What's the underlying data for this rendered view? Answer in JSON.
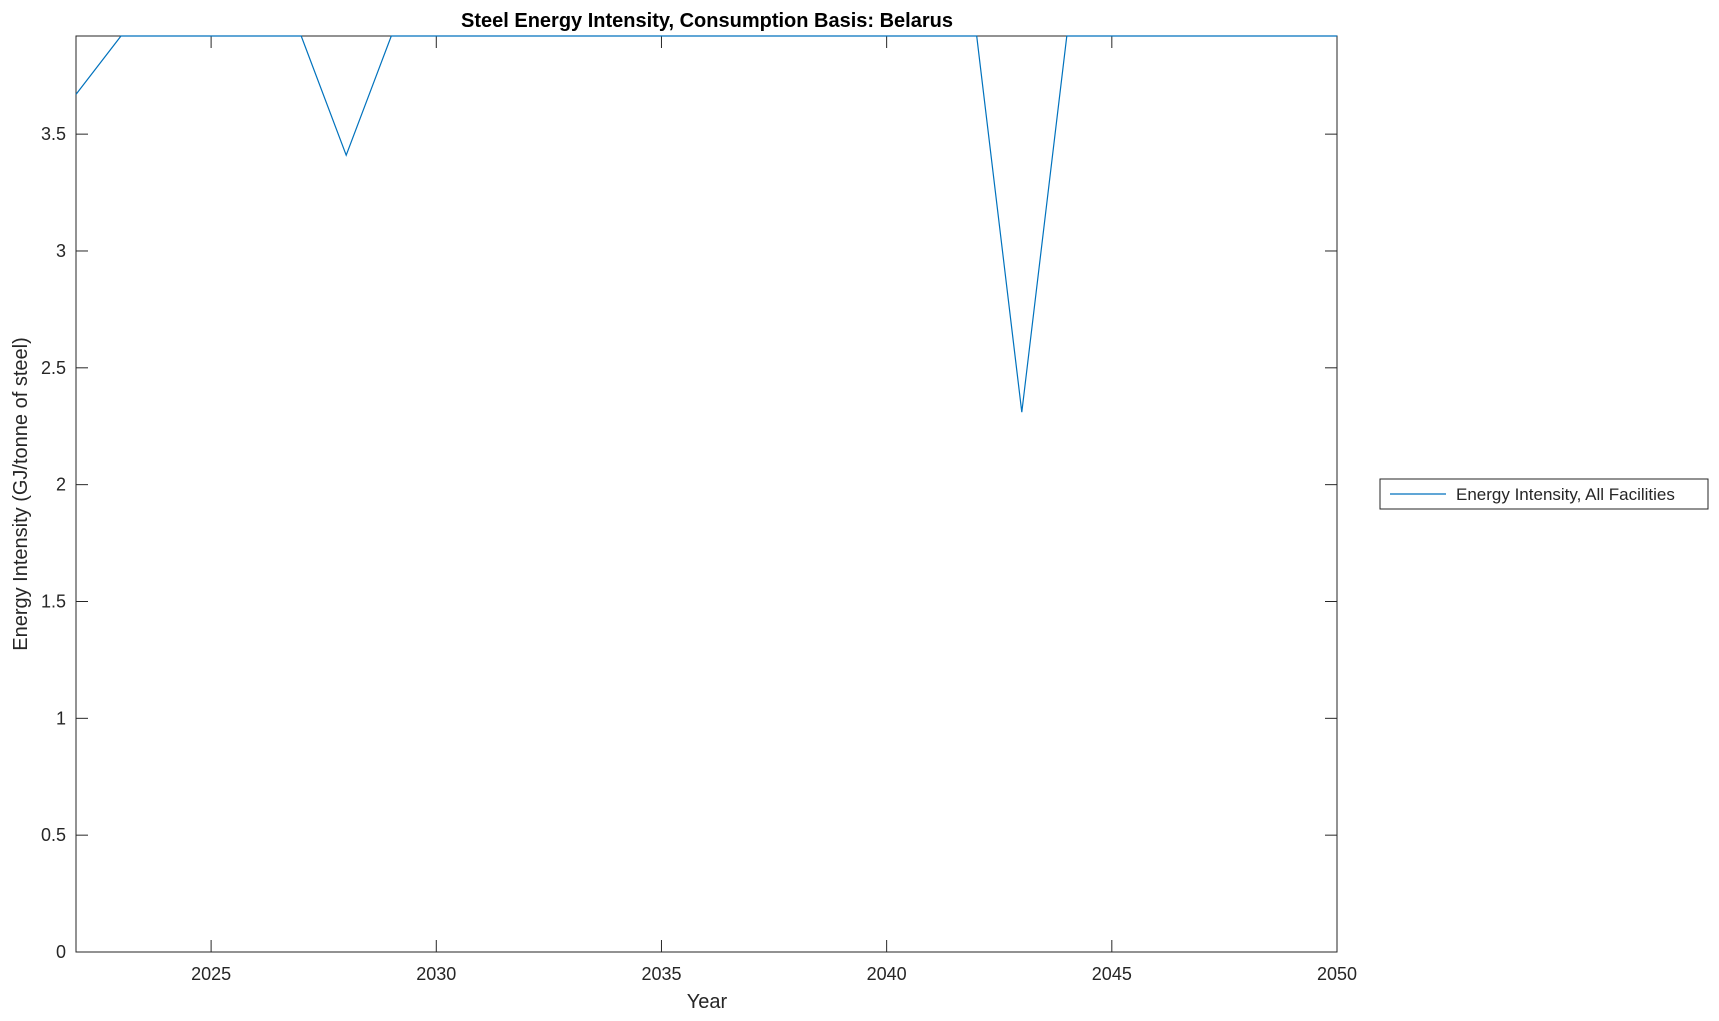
{
  "chart_data": {
    "type": "line",
    "title": "Steel Energy Intensity, Consumption Basis: Belarus",
    "xlabel": "Year",
    "ylabel": "Energy Intensity (GJ/tonne of steel)",
    "xlim": [
      2022,
      2050
    ],
    "ylim": [
      0,
      3.92
    ],
    "xticks": [
      2025,
      2030,
      2035,
      2040,
      2045,
      2050
    ],
    "yticks": [
      0,
      0.5,
      1,
      1.5,
      2,
      2.5,
      3,
      3.5
    ],
    "ytick_labels": [
      "0",
      "0.5",
      "1",
      "1.5",
      "2",
      "2.5",
      "3",
      "3.5"
    ],
    "grid": false,
    "legend_position": "outside-right",
    "series": [
      {
        "name": "Energy Intensity, All Facilities",
        "color": "#0072BD",
        "x": [
          2022,
          2023,
          2024,
          2025,
          2026,
          2027,
          2028,
          2029,
          2030,
          2031,
          2032,
          2033,
          2034,
          2035,
          2036,
          2037,
          2038,
          2039,
          2040,
          2041,
          2042,
          2043,
          2044,
          2045,
          2046,
          2047,
          2048,
          2049,
          2050
        ],
        "y": [
          3.67,
          3.92,
          3.92,
          3.92,
          3.92,
          3.92,
          3.41,
          3.92,
          3.92,
          3.92,
          3.92,
          3.92,
          3.92,
          3.92,
          3.92,
          3.92,
          3.92,
          3.92,
          3.92,
          3.92,
          3.92,
          2.31,
          3.92,
          3.92,
          3.92,
          3.92,
          3.92,
          3.92,
          3.92
        ]
      }
    ]
  }
}
